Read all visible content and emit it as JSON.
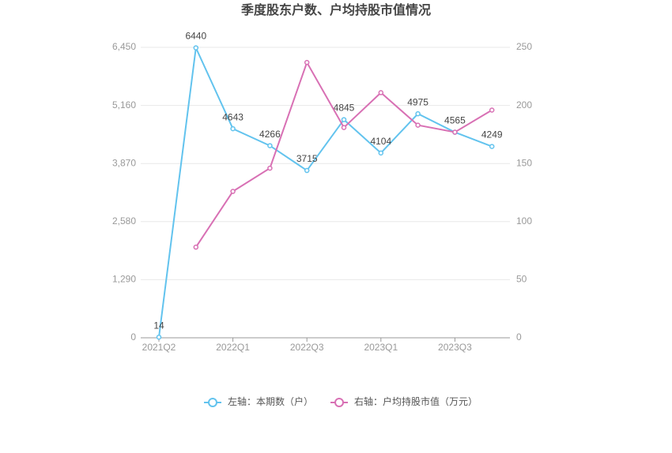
{
  "chart_data": {
    "type": "line",
    "title": "季度股东户数、户均持股市值情况",
    "categories": [
      "2021Q2",
      null,
      "2022Q1",
      null,
      "2022Q3",
      null,
      "2023Q1",
      null,
      "2023Q3",
      null
    ],
    "series": [
      {
        "name": "左轴：本期数（户）",
        "color": "#62c3ee",
        "axis": "y",
        "values": [
          14,
          6440,
          4643,
          4266,
          3715,
          4845,
          4104,
          4975,
          4565,
          4249
        ]
      },
      {
        "name": "右轴：户均持股市值（万元）",
        "color": "#d870b4",
        "axis": "y2",
        "values": [
          null,
          78,
          126,
          146,
          237,
          181,
          211,
          183,
          177,
          196
        ]
      }
    ],
    "ylim": [
      0,
      6450
    ],
    "yticks": [
      0,
      {
        "value": 1290,
        "label": "1,290"
      },
      {
        "value": 2580,
        "label": "2,580"
      },
      {
        "value": 3870,
        "label": "3,870"
      },
      {
        "value": 5160,
        "label": "5,160"
      },
      {
        "value": 6450,
        "label": "6,450"
      }
    ],
    "y2lim": [
      0,
      250
    ],
    "y2ticks": [
      0,
      50,
      100,
      150,
      200,
      250
    ],
    "grid": true,
    "legend": "bottom"
  }
}
